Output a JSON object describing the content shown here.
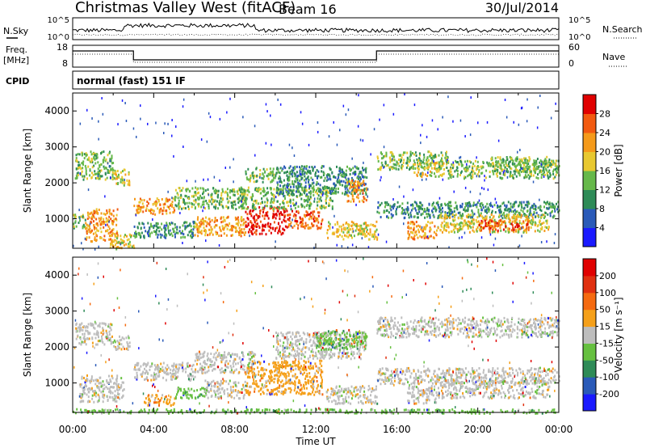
{
  "header": {
    "station": "Christmas Valley West (fitACF)",
    "beam": "Beam 16",
    "date": "30/Jul/2014"
  },
  "noise_panel": {
    "left_label": "N.Sky",
    "right_label": "N.Search",
    "left_ticks": [
      "10^5",
      "10^0"
    ],
    "right_ticks": [
      "10^5",
      "10^0"
    ]
  },
  "freq_panel": {
    "left_label_1": "Freq.",
    "left_label_2": "[MHz]",
    "right_label": "Nave",
    "left_ticks": [
      "18",
      "8"
    ],
    "right_ticks": [
      "60",
      "0"
    ]
  },
  "cpid": {
    "label": "CPID",
    "value": "normal (fast) 151 IF"
  },
  "chart_data": [
    {
      "type": "heatmap",
      "parameter": "Power",
      "ylabel": "Slant Range [km]",
      "xlabel": "",
      "xlim": [
        0,
        24
      ],
      "ylim": [
        180,
        4500
      ],
      "y_ticks": [
        1000,
        2000,
        3000,
        4000
      ],
      "colorbar": {
        "label": "Power [dB]",
        "ticks": [
          "4",
          "8",
          "12",
          "16",
          "20",
          "24",
          "28"
        ],
        "colors": [
          "#1a1aff",
          "#2a5ab8",
          "#2e8b57",
          "#66b84a",
          "#e8c830",
          "#f59a1a",
          "#f25a10",
          "#e00000"
        ]
      },
      "bands": [
        {
          "t0": 0.1,
          "t1": 2.0,
          "r0": 2100,
          "r1": 2900,
          "level": 3
        },
        {
          "t0": 2.0,
          "t1": 2.8,
          "r0": 1950,
          "r1": 2400,
          "level": 4
        },
        {
          "t0": 0.0,
          "t1": 0.6,
          "r0": 750,
          "r1": 1150,
          "level": 3
        },
        {
          "t0": 0.6,
          "t1": 2.2,
          "r0": 400,
          "r1": 1300,
          "level": 5
        },
        {
          "t0": 1.8,
          "t1": 3.0,
          "r0": 180,
          "r1": 600,
          "level": 4
        },
        {
          "t0": 3.0,
          "t1": 5.0,
          "r0": 1150,
          "r1": 1600,
          "level": 5
        },
        {
          "t0": 3.0,
          "t1": 6.0,
          "r0": 500,
          "r1": 950,
          "level": 2
        },
        {
          "t0": 5.0,
          "t1": 8.5,
          "r0": 1300,
          "r1": 1900,
          "level": 3
        },
        {
          "t0": 6.0,
          "t1": 8.5,
          "r0": 550,
          "r1": 1100,
          "level": 5
        },
        {
          "t0": 8.5,
          "t1": 10.5,
          "r0": 600,
          "r1": 1350,
          "level": 7
        },
        {
          "t0": 10.5,
          "t1": 12.3,
          "r0": 750,
          "r1": 1250,
          "level": 6
        },
        {
          "t0": 8.3,
          "t1": 12.8,
          "r0": 1300,
          "r1": 1900,
          "level": 3
        },
        {
          "t0": 8.5,
          "t1": 10.0,
          "r0": 2050,
          "r1": 2450,
          "level": 3
        },
        {
          "t0": 10.0,
          "t1": 14.5,
          "r0": 1700,
          "r1": 2500,
          "level": 2
        },
        {
          "t0": 13.5,
          "t1": 14.5,
          "r0": 1500,
          "r1": 2100,
          "level": 5
        },
        {
          "t0": 12.5,
          "t1": 15.0,
          "r0": 450,
          "r1": 950,
          "level": 4
        },
        {
          "t0": 15.0,
          "t1": 18.5,
          "r0": 2400,
          "r1": 2900,
          "level": 3
        },
        {
          "t0": 16.8,
          "t1": 18.3,
          "r0": 2200,
          "r1": 2600,
          "level": 4
        },
        {
          "t0": 18.5,
          "t1": 24.0,
          "r0": 2150,
          "r1": 2650,
          "level": 3
        },
        {
          "t0": 20.5,
          "t1": 23.5,
          "r0": 2300,
          "r1": 2750,
          "level": 3
        },
        {
          "t0": 15.0,
          "t1": 24.0,
          "r0": 1050,
          "r1": 1500,
          "level": 2
        },
        {
          "t0": 16.5,
          "t1": 18.0,
          "r0": 450,
          "r1": 950,
          "level": 5
        },
        {
          "t0": 18.0,
          "t1": 23.5,
          "r0": 650,
          "r1": 1150,
          "level": 4
        },
        {
          "t0": 20.0,
          "t1": 22.5,
          "r0": 700,
          "r1": 1000,
          "level": 6
        }
      ]
    },
    {
      "type": "heatmap",
      "parameter": "Velocity",
      "ylabel": "Slant Range [km]",
      "xlabel": "Time UT",
      "xlim": [
        0,
        24
      ],
      "ylim": [
        180,
        4500
      ],
      "y_ticks": [
        1000,
        2000,
        3000,
        4000
      ],
      "x_ticks": [
        "00:00",
        "04:00",
        "08:00",
        "12:00",
        "16:00",
        "20:00",
        "00:00"
      ],
      "colorbar": {
        "label": "Velocity [m s⁻¹]",
        "ticks": [
          "200",
          "100",
          "50",
          "15",
          "-15",
          "-50",
          "-100",
          "-200"
        ],
        "colors": [
          "#1a1aff",
          "#2a5ab8",
          "#2e8b57",
          "#66c040",
          "#bdbdbd",
          "#f5a01a",
          "#f56a10",
          "#e03010",
          "#e00000"
        ]
      },
      "bands": [
        {
          "t0": 0.1,
          "t1": 2.0,
          "r0": 2100,
          "r1": 2700,
          "level": 4
        },
        {
          "t0": 2.0,
          "t1": 2.8,
          "r0": 1950,
          "r1": 2350,
          "level": 4
        },
        {
          "t0": 0.3,
          "t1": 2.5,
          "r0": 500,
          "r1": 1250,
          "level": 4
        },
        {
          "t0": 3.0,
          "t1": 6.0,
          "r0": 1100,
          "r1": 1600,
          "level": 4
        },
        {
          "t0": 3.5,
          "t1": 5.0,
          "r0": 400,
          "r1": 700,
          "level": 5
        },
        {
          "t0": 5.0,
          "t1": 6.5,
          "r0": 600,
          "r1": 900,
          "level": 3
        },
        {
          "t0": 6.0,
          "t1": 9.0,
          "r0": 1300,
          "r1": 1900,
          "level": 4
        },
        {
          "t0": 6.5,
          "t1": 8.5,
          "r0": 600,
          "r1": 1100,
          "level": 4
        },
        {
          "t0": 8.5,
          "t1": 12.3,
          "r0": 700,
          "r1": 1650,
          "level": 5
        },
        {
          "t0": 10.0,
          "t1": 14.5,
          "r0": 1700,
          "r1": 2450,
          "level": 4
        },
        {
          "t0": 12.0,
          "t1": 14.5,
          "r0": 1950,
          "r1": 2500,
          "level": 3
        },
        {
          "t0": 12.5,
          "t1": 15.0,
          "r0": 450,
          "r1": 950,
          "level": 4
        },
        {
          "t0": 15.0,
          "t1": 24.0,
          "r0": 2300,
          "r1": 2850,
          "level": 4
        },
        {
          "t0": 15.0,
          "t1": 24.0,
          "r0": 1000,
          "r1": 1450,
          "level": 4
        },
        {
          "t0": 16.5,
          "t1": 18.0,
          "r0": 450,
          "r1": 950,
          "level": 4
        },
        {
          "t0": 18.0,
          "t1": 23.5,
          "r0": 600,
          "r1": 1100,
          "level": 4
        },
        {
          "t0": 0.0,
          "t1": 24.0,
          "r0": 180,
          "r1": 300,
          "level": 3
        }
      ]
    }
  ]
}
